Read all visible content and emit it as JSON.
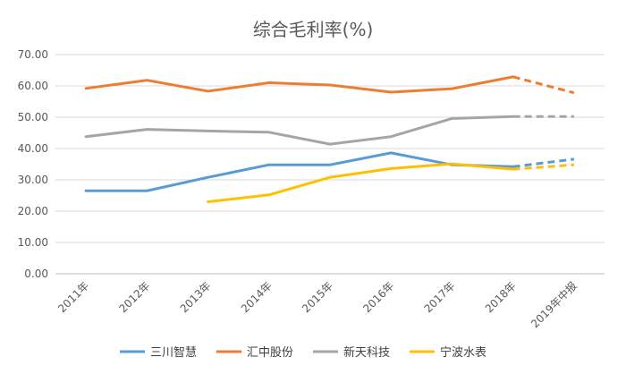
{
  "chart_data": {
    "type": "line",
    "title": "综合毛利率(%)",
    "categories": [
      "2011年",
      "2012年",
      "2013年",
      "2014年",
      "2015年",
      "2016年",
      "2017年",
      "2018年",
      "2019年中报"
    ],
    "y_ticks": [
      "0.00",
      "10.00",
      "20.00",
      "30.00",
      "40.00",
      "50.00",
      "60.00",
      "70.00"
    ],
    "ylim": [
      0,
      70
    ],
    "grid": true,
    "legend_position": "bottom",
    "dashed_from_index": 7,
    "series": [
      {
        "name": "三川智慧",
        "color": "#5b9bd5",
        "values": [
          26.5,
          26.5,
          30.8,
          34.8,
          34.8,
          38.6,
          34.8,
          34.2,
          36.6
        ]
      },
      {
        "name": "汇中股份",
        "color": "#ed7d31",
        "values": [
          59.2,
          61.8,
          58.3,
          61.0,
          60.3,
          58.0,
          59.1,
          62.9,
          57.8
        ]
      },
      {
        "name": "新天科技",
        "color": "#a5a5a5",
        "values": [
          43.8,
          46.1,
          45.6,
          45.2,
          41.4,
          43.8,
          49.6,
          50.2,
          50.2
        ]
      },
      {
        "name": "宁波水表",
        "color": "#ffc000",
        "values": [
          null,
          null,
          23.0,
          25.2,
          30.8,
          33.6,
          35.1,
          33.4,
          34.8
        ]
      }
    ]
  }
}
